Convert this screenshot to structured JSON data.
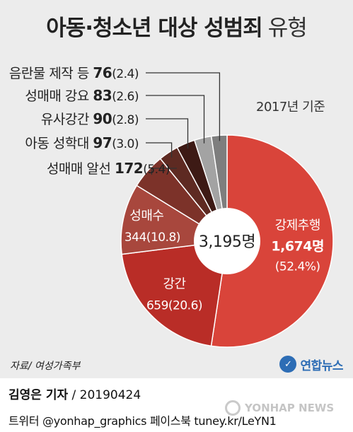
{
  "title": {
    "main": "아동·청소년 대상 성범죄",
    "sub": "유형"
  },
  "basis_note": "2017년 기준",
  "center_label": "3,195명",
  "source": "자료/ 여성가족부",
  "logo_text": "연합뉴스",
  "byline": {
    "reporter": "김영은 기자",
    "date": "/ 20190424"
  },
  "socials": "트위터 @yonhap_graphics  페이스북 tuney.kr/LeYN1",
  "watermark": "YONHAP NEWS",
  "chart_data": {
    "type": "pie",
    "title": "아동·청소년 대상 성범죄 유형",
    "subtitle": "2017년 기준",
    "total_label": "3,195명",
    "unit": "명 (%)",
    "slices": [
      {
        "label": "강제추행",
        "value": 1674,
        "percent": 52.4,
        "value_text": "1,674명",
        "pct_text": "(52.4%)",
        "color": "#d9443a"
      },
      {
        "label": "강간",
        "value": 659,
        "percent": 20.6,
        "value_text": "659",
        "pct_text": "(20.6)",
        "color": "#b92d27"
      },
      {
        "label": "성매수",
        "value": 344,
        "percent": 10.8,
        "value_text": "344",
        "pct_text": "(10.8)",
        "color": "#a8473d"
      },
      {
        "label": "성매매 알선",
        "value": 172,
        "percent": 5.4,
        "value_text": "172",
        "pct_text": "(5.4)",
        "color": "#7c3229"
      },
      {
        "label": "아동 성학대",
        "value": 97,
        "percent": 3.0,
        "value_text": "97",
        "pct_text": "(3.0)",
        "color": "#5e2a22"
      },
      {
        "label": "유사강간",
        "value": 90,
        "percent": 2.8,
        "value_text": "90",
        "pct_text": "(2.8)",
        "color": "#3d1a15"
      },
      {
        "label": "성매매 강요",
        "value": 83,
        "percent": 2.6,
        "value_text": "83",
        "pct_text": "(2.6)",
        "color": "#a3a3a3"
      },
      {
        "label": "음란물 제작 등",
        "value": 76,
        "percent": 2.4,
        "value_text": "76",
        "pct_text": "(2.4)",
        "color": "#7e7e7e"
      }
    ]
  }
}
